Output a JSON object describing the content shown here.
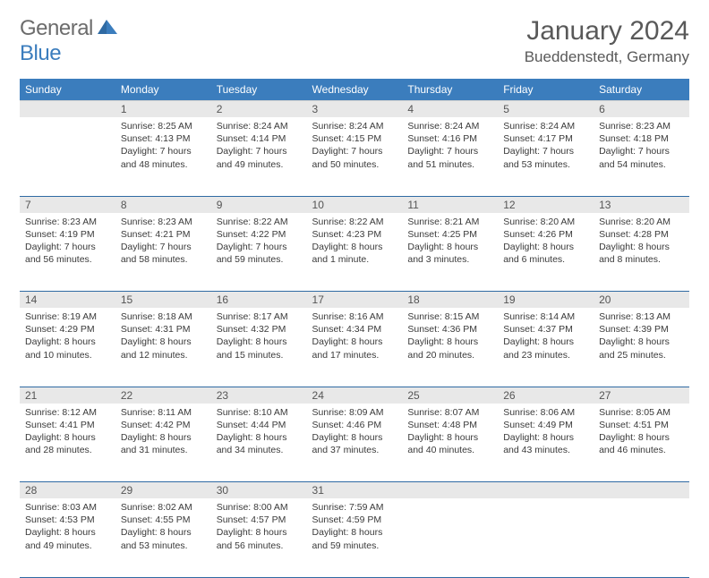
{
  "brand": {
    "word1": "General",
    "word2": "Blue"
  },
  "title": "January 2024",
  "location": "Bueddenstedt, Germany",
  "colors": {
    "header_bg": "#3b7dbd",
    "header_text": "#ffffff",
    "daynum_bg": "#e8e8e8",
    "row_border": "#2f6aa3",
    "body_text": "#3a3a3a",
    "title_text": "#595959"
  },
  "calendar": {
    "day_headers": [
      "Sunday",
      "Monday",
      "Tuesday",
      "Wednesday",
      "Thursday",
      "Friday",
      "Saturday"
    ],
    "weeks": [
      {
        "nums": [
          "",
          "1",
          "2",
          "3",
          "4",
          "5",
          "6"
        ],
        "cells": [
          null,
          {
            "sunrise": "Sunrise: 8:25 AM",
            "sunset": "Sunset: 4:13 PM",
            "day1": "Daylight: 7 hours",
            "day2": "and 48 minutes."
          },
          {
            "sunrise": "Sunrise: 8:24 AM",
            "sunset": "Sunset: 4:14 PM",
            "day1": "Daylight: 7 hours",
            "day2": "and 49 minutes."
          },
          {
            "sunrise": "Sunrise: 8:24 AM",
            "sunset": "Sunset: 4:15 PM",
            "day1": "Daylight: 7 hours",
            "day2": "and 50 minutes."
          },
          {
            "sunrise": "Sunrise: 8:24 AM",
            "sunset": "Sunset: 4:16 PM",
            "day1": "Daylight: 7 hours",
            "day2": "and 51 minutes."
          },
          {
            "sunrise": "Sunrise: 8:24 AM",
            "sunset": "Sunset: 4:17 PM",
            "day1": "Daylight: 7 hours",
            "day2": "and 53 minutes."
          },
          {
            "sunrise": "Sunrise: 8:23 AM",
            "sunset": "Sunset: 4:18 PM",
            "day1": "Daylight: 7 hours",
            "day2": "and 54 minutes."
          }
        ]
      },
      {
        "nums": [
          "7",
          "8",
          "9",
          "10",
          "11",
          "12",
          "13"
        ],
        "cells": [
          {
            "sunrise": "Sunrise: 8:23 AM",
            "sunset": "Sunset: 4:19 PM",
            "day1": "Daylight: 7 hours",
            "day2": "and 56 minutes."
          },
          {
            "sunrise": "Sunrise: 8:23 AM",
            "sunset": "Sunset: 4:21 PM",
            "day1": "Daylight: 7 hours",
            "day2": "and 58 minutes."
          },
          {
            "sunrise": "Sunrise: 8:22 AM",
            "sunset": "Sunset: 4:22 PM",
            "day1": "Daylight: 7 hours",
            "day2": "and 59 minutes."
          },
          {
            "sunrise": "Sunrise: 8:22 AM",
            "sunset": "Sunset: 4:23 PM",
            "day1": "Daylight: 8 hours",
            "day2": "and 1 minute."
          },
          {
            "sunrise": "Sunrise: 8:21 AM",
            "sunset": "Sunset: 4:25 PM",
            "day1": "Daylight: 8 hours",
            "day2": "and 3 minutes."
          },
          {
            "sunrise": "Sunrise: 8:20 AM",
            "sunset": "Sunset: 4:26 PM",
            "day1": "Daylight: 8 hours",
            "day2": "and 6 minutes."
          },
          {
            "sunrise": "Sunrise: 8:20 AM",
            "sunset": "Sunset: 4:28 PM",
            "day1": "Daylight: 8 hours",
            "day2": "and 8 minutes."
          }
        ]
      },
      {
        "nums": [
          "14",
          "15",
          "16",
          "17",
          "18",
          "19",
          "20"
        ],
        "cells": [
          {
            "sunrise": "Sunrise: 8:19 AM",
            "sunset": "Sunset: 4:29 PM",
            "day1": "Daylight: 8 hours",
            "day2": "and 10 minutes."
          },
          {
            "sunrise": "Sunrise: 8:18 AM",
            "sunset": "Sunset: 4:31 PM",
            "day1": "Daylight: 8 hours",
            "day2": "and 12 minutes."
          },
          {
            "sunrise": "Sunrise: 8:17 AM",
            "sunset": "Sunset: 4:32 PM",
            "day1": "Daylight: 8 hours",
            "day2": "and 15 minutes."
          },
          {
            "sunrise": "Sunrise: 8:16 AM",
            "sunset": "Sunset: 4:34 PM",
            "day1": "Daylight: 8 hours",
            "day2": "and 17 minutes."
          },
          {
            "sunrise": "Sunrise: 8:15 AM",
            "sunset": "Sunset: 4:36 PM",
            "day1": "Daylight: 8 hours",
            "day2": "and 20 minutes."
          },
          {
            "sunrise": "Sunrise: 8:14 AM",
            "sunset": "Sunset: 4:37 PM",
            "day1": "Daylight: 8 hours",
            "day2": "and 23 minutes."
          },
          {
            "sunrise": "Sunrise: 8:13 AM",
            "sunset": "Sunset: 4:39 PM",
            "day1": "Daylight: 8 hours",
            "day2": "and 25 minutes."
          }
        ]
      },
      {
        "nums": [
          "21",
          "22",
          "23",
          "24",
          "25",
          "26",
          "27"
        ],
        "cells": [
          {
            "sunrise": "Sunrise: 8:12 AM",
            "sunset": "Sunset: 4:41 PM",
            "day1": "Daylight: 8 hours",
            "day2": "and 28 minutes."
          },
          {
            "sunrise": "Sunrise: 8:11 AM",
            "sunset": "Sunset: 4:42 PM",
            "day1": "Daylight: 8 hours",
            "day2": "and 31 minutes."
          },
          {
            "sunrise": "Sunrise: 8:10 AM",
            "sunset": "Sunset: 4:44 PM",
            "day1": "Daylight: 8 hours",
            "day2": "and 34 minutes."
          },
          {
            "sunrise": "Sunrise: 8:09 AM",
            "sunset": "Sunset: 4:46 PM",
            "day1": "Daylight: 8 hours",
            "day2": "and 37 minutes."
          },
          {
            "sunrise": "Sunrise: 8:07 AM",
            "sunset": "Sunset: 4:48 PM",
            "day1": "Daylight: 8 hours",
            "day2": "and 40 minutes."
          },
          {
            "sunrise": "Sunrise: 8:06 AM",
            "sunset": "Sunset: 4:49 PM",
            "day1": "Daylight: 8 hours",
            "day2": "and 43 minutes."
          },
          {
            "sunrise": "Sunrise: 8:05 AM",
            "sunset": "Sunset: 4:51 PM",
            "day1": "Daylight: 8 hours",
            "day2": "and 46 minutes."
          }
        ]
      },
      {
        "nums": [
          "28",
          "29",
          "30",
          "31",
          "",
          "",
          ""
        ],
        "cells": [
          {
            "sunrise": "Sunrise: 8:03 AM",
            "sunset": "Sunset: 4:53 PM",
            "day1": "Daylight: 8 hours",
            "day2": "and 49 minutes."
          },
          {
            "sunrise": "Sunrise: 8:02 AM",
            "sunset": "Sunset: 4:55 PM",
            "day1": "Daylight: 8 hours",
            "day2": "and 53 minutes."
          },
          {
            "sunrise": "Sunrise: 8:00 AM",
            "sunset": "Sunset: 4:57 PM",
            "day1": "Daylight: 8 hours",
            "day2": "and 56 minutes."
          },
          {
            "sunrise": "Sunrise: 7:59 AM",
            "sunset": "Sunset: 4:59 PM",
            "day1": "Daylight: 8 hours",
            "day2": "and 59 minutes."
          },
          null,
          null,
          null
        ]
      }
    ]
  }
}
